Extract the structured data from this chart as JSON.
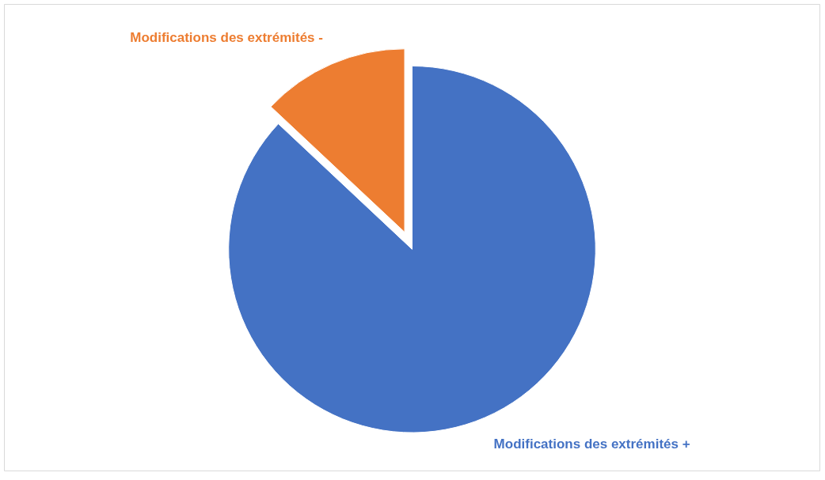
{
  "chart_data": {
    "type": "pie",
    "categories": [
      "Modifications des extrémités +",
      "Modifications des extrémités -"
    ],
    "values": [
      87,
      13
    ],
    "colors": [
      "#4472c4",
      "#ed7d31"
    ]
  }
}
